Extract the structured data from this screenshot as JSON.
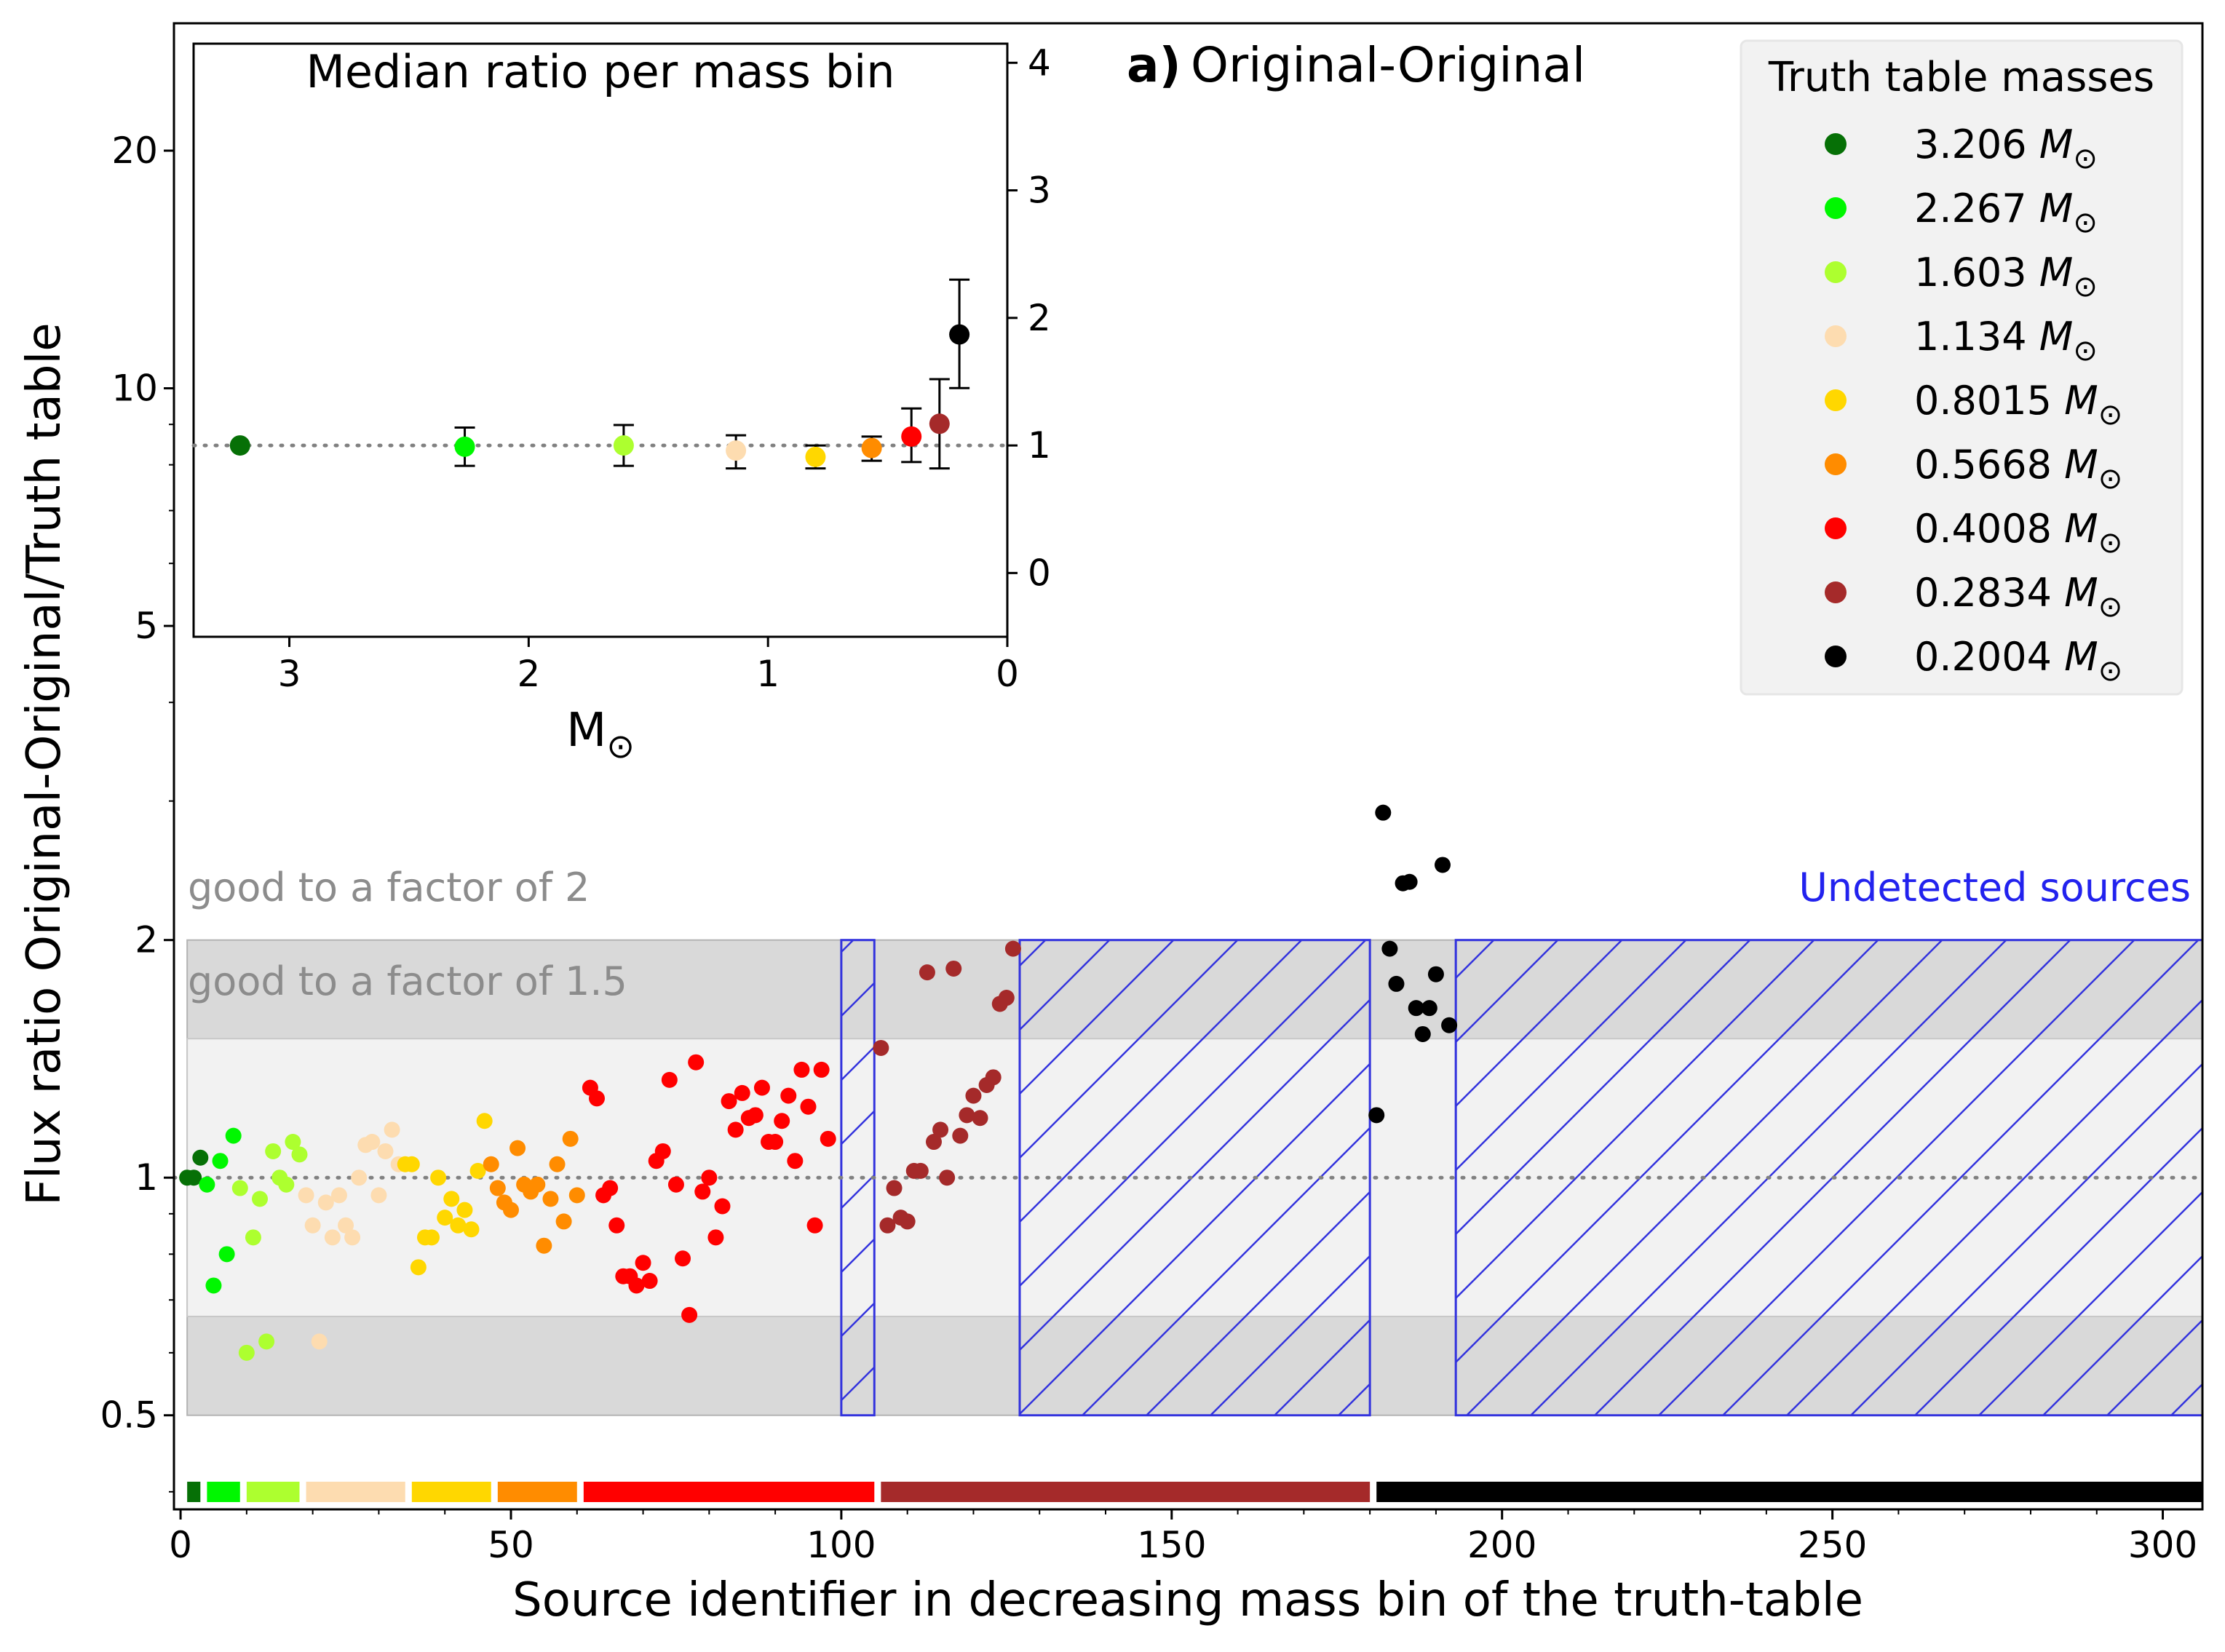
{
  "chart_data": [
    {
      "type": "scatter",
      "panel_label": "a)",
      "title": "Original-Original",
      "xlabel": "Source identifier in decreasing mass bin of the truth-table",
      "ylabel": "Flux ratio Original-Original/Truth table",
      "xlim": [
        -1,
        306
      ],
      "ylim": [
        0.38,
        29
      ],
      "y_scale": "log",
      "x_ticks": [
        0,
        50,
        100,
        150,
        200,
        250,
        300
      ],
      "y_ticks": [
        0.5,
        1,
        2,
        5,
        10,
        20
      ],
      "y_tick_labels": [
        "0.5",
        "1",
        "2",
        "5",
        "10",
        "20"
      ],
      "reference_line": 1,
      "bands": [
        {
          "label": "good to a factor of 2",
          "low": 0.5,
          "high": 2,
          "x0": 1,
          "x1": 306,
          "color": "#d9d9d9"
        },
        {
          "label": "good to a factor of 1.5",
          "low": 0.667,
          "high": 1.5,
          "x0": 1,
          "x1": 306,
          "color": "#f2f2f2"
        }
      ],
      "undetected_label": "Undetected sources",
      "undetected_regions": [
        [
          100,
          105
        ],
        [
          127,
          180
        ],
        [
          193,
          306
        ]
      ],
      "legend_title": "Truth table masses",
      "legend_position": "upper right",
      "series": [
        {
          "name": "3.206",
          "color": "#067006",
          "x": [
            1,
            2,
            3
          ],
          "y": [
            1.0,
            1.0,
            1.06
          ]
        },
        {
          "name": "2.267",
          "color": "#00f700",
          "x": [
            4,
            5,
            6,
            7,
            8
          ],
          "y": [
            0.98,
            0.73,
            1.05,
            0.8,
            1.13
          ]
        },
        {
          "name": "1.603",
          "color": "#adff2f",
          "x": [
            9,
            10,
            11,
            12,
            13,
            14,
            15,
            16,
            17,
            18
          ],
          "y": [
            0.97,
            0.6,
            0.84,
            0.94,
            0.62,
            1.08,
            1.0,
            0.98,
            1.11,
            1.07
          ]
        },
        {
          "name": "1.134",
          "color": "#fddcb0",
          "x": [
            19,
            20,
            21,
            22,
            23,
            24,
            25,
            26,
            27,
            28,
            29,
            30,
            31,
            32,
            33
          ],
          "y": [
            0.95,
            0.87,
            0.62,
            0.93,
            0.84,
            0.95,
            0.87,
            0.84,
            1.0,
            1.1,
            1.11,
            0.95,
            1.08,
            1.15,
            1.04
          ]
        },
        {
          "name": "0.8015",
          "color": "#ffd700",
          "x": [
            34,
            35,
            36,
            37,
            38,
            39,
            40,
            41,
            42,
            43,
            44,
            45,
            46
          ],
          "y": [
            1.04,
            1.04,
            0.77,
            0.84,
            0.84,
            1.0,
            0.89,
            0.94,
            0.87,
            0.91,
            0.86,
            1.02,
            1.18
          ]
        },
        {
          "name": "0.5668",
          "color": "#ff8c00",
          "x": [
            47,
            48,
            49,
            50,
            51,
            52,
            53,
            54,
            55,
            56,
            57,
            58,
            59,
            60
          ],
          "y": [
            1.04,
            0.97,
            0.93,
            0.91,
            1.09,
            0.98,
            0.96,
            0.98,
            0.82,
            0.94,
            1.04,
            0.88,
            1.12,
            0.95
          ]
        },
        {
          "name": "0.4008",
          "color": "#ff0000",
          "x": [
            62,
            63,
            64,
            65,
            66,
            67,
            68,
            69,
            70,
            71,
            72,
            73,
            74,
            75,
            76,
            77,
            78,
            79,
            80,
            81,
            82,
            83,
            84,
            85,
            86,
            87,
            88,
            89,
            90,
            91,
            92,
            93,
            94,
            95,
            96,
            97,
            98
          ],
          "y": [
            1.3,
            1.26,
            0.95,
            0.97,
            0.87,
            0.75,
            0.75,
            0.73,
            0.78,
            0.74,
            1.05,
            1.08,
            1.33,
            0.98,
            0.79,
            0.67,
            1.4,
            0.96,
            1.0,
            0.84,
            0.92,
            1.25,
            1.15,
            1.28,
            1.19,
            1.2,
            1.3,
            1.11,
            1.11,
            1.18,
            1.27,
            1.05,
            1.37,
            1.23,
            0.87,
            1.37,
            1.12
          ]
        },
        {
          "name": "0.2834",
          "color": "#a52a2a",
          "x": [
            106,
            107,
            108,
            109,
            110,
            111,
            112,
            113,
            114,
            115,
            116,
            117,
            118,
            119,
            120,
            121,
            122,
            123,
            124,
            125,
            126
          ],
          "y": [
            1.46,
            0.87,
            0.97,
            0.89,
            0.88,
            1.02,
            1.02,
            1.82,
            1.11,
            1.15,
            1.0,
            1.84,
            1.13,
            1.2,
            1.27,
            1.19,
            1.31,
            1.34,
            1.66,
            1.69,
            1.95
          ]
        },
        {
          "name": "0.2004",
          "color": "#000000",
          "x": [
            181,
            182,
            183,
            184,
            185,
            186,
            187,
            188,
            189,
            190,
            191,
            192
          ],
          "y": [
            1.2,
            2.9,
            1.95,
            1.76,
            2.36,
            2.37,
            1.64,
            1.52,
            1.64,
            1.81,
            2.49,
            1.56
          ]
        }
      ],
      "legend_unit": "M",
      "legend_subscript": "⊙",
      "mass_bar": [
        {
          "color": "#067006",
          "x0": 1,
          "x1": 3
        },
        {
          "color": "#00f700",
          "x0": 4,
          "x1": 9
        },
        {
          "color": "#adff2f",
          "x0": 10,
          "x1": 18
        },
        {
          "color": "#fddcb0",
          "x0": 19,
          "x1": 34
        },
        {
          "color": "#ffd700",
          "x0": 35,
          "x1": 47
        },
        {
          "color": "#ff8c00",
          "x0": 48,
          "x1": 60
        },
        {
          "color": "#ff0000",
          "x0": 61,
          "x1": 105
        },
        {
          "color": "#a52a2a",
          "x0": 106,
          "x1": 180
        },
        {
          "color": "#000000",
          "x0": 181,
          "x1": 306
        }
      ]
    },
    {
      "type": "scatter",
      "title": "Median ratio per mass bin",
      "xlabel": "M",
      "xlabel_subscript": "⊙",
      "xlim": [
        3.4,
        0
      ],
      "ylim": [
        -0.5,
        4.15
      ],
      "x_ticks": [
        3,
        2,
        1,
        0
      ],
      "y_ticks": [
        0,
        1,
        2,
        3,
        4
      ],
      "y_axis_side": "right",
      "reference_line": 1,
      "points": [
        {
          "mass": 3.206,
          "median": 1.0,
          "err_low": 0.0,
          "err_high": 0.0,
          "color": "#067006"
        },
        {
          "mass": 2.267,
          "median": 0.99,
          "err_low": 0.15,
          "err_high": 0.15,
          "color": "#00f700"
        },
        {
          "mass": 1.603,
          "median": 1.0,
          "err_low": 0.16,
          "err_high": 0.16,
          "color": "#adff2f"
        },
        {
          "mass": 1.134,
          "median": 0.96,
          "err_low": 0.14,
          "err_high": 0.12,
          "color": "#fddcb0"
        },
        {
          "mass": 0.8015,
          "median": 0.91,
          "err_low": 0.09,
          "err_high": 0.09,
          "color": "#ffd700"
        },
        {
          "mass": 0.5668,
          "median": 0.98,
          "err_low": 0.1,
          "err_high": 0.09,
          "color": "#ff8c00"
        },
        {
          "mass": 0.4008,
          "median": 1.07,
          "err_low": 0.2,
          "err_high": 0.22,
          "color": "#ff0000"
        },
        {
          "mass": 0.2834,
          "median": 1.17,
          "err_low": 0.35,
          "err_high": 0.35,
          "color": "#a52a2a"
        },
        {
          "mass": 0.2004,
          "median": 1.87,
          "err_low": 0.42,
          "err_high": 0.43,
          "color": "#000000"
        }
      ]
    }
  ]
}
